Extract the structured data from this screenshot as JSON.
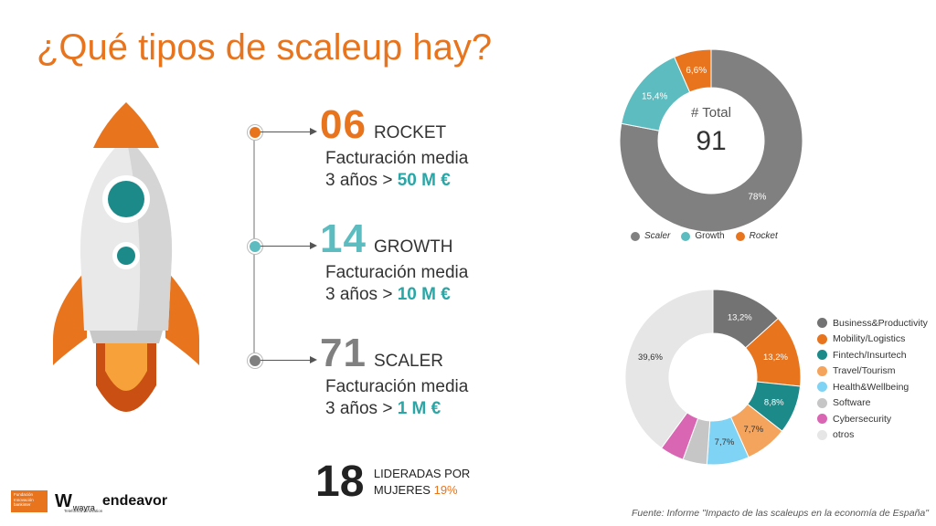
{
  "title": "¿Qué tipos de scaleup hay?",
  "types": [
    {
      "num": "06",
      "name": "ROCKET",
      "label": "Facturación media",
      "prefix": "3 años >",
      "value": "50 M €",
      "color": "#e8741e"
    },
    {
      "num": "14",
      "name": "GROWTH",
      "label": "Facturación media",
      "prefix": "3 años >",
      "value": "10 M €",
      "color": "#5cbcbf"
    },
    {
      "num": "71",
      "name": "SCALER",
      "label": "Facturación media",
      "prefix": "3 años >",
      "value": "1 M €",
      "color": "#808080"
    }
  ],
  "women": {
    "num": "18",
    "line1": "LIDERADAS POR",
    "line2": "MUJERES",
    "pct": "19%"
  },
  "source": "Fuente: Informe \"Impacto de las scaleups en la economía de España\"",
  "logos": {
    "fundacion": "Fundación Innovación bankinter",
    "wayra": "wayra",
    "wayra_sub": "Telefónica Innovation",
    "endeavor": "endeavor"
  },
  "chart_data": [
    {
      "type": "pie",
      "center_label": "# Total",
      "center_value": "91",
      "series": [
        {
          "name": "Scaler",
          "value": 78,
          "label": "78%",
          "color": "#808080"
        },
        {
          "name": "Growth",
          "value": 15.4,
          "label": "15,4%",
          "color": "#5cbcbf"
        },
        {
          "name": "Rocket",
          "value": 6.6,
          "label": "6,6%",
          "color": "#e8741e"
        }
      ],
      "legend_position": "bottom"
    },
    {
      "type": "pie",
      "series": [
        {
          "name": "Business&Productivity",
          "value": 13.2,
          "label": "13,2%",
          "color": "#737373"
        },
        {
          "name": "Mobility/Logistics",
          "value": 13.2,
          "label": "13,2%",
          "color": "#e8741e"
        },
        {
          "name": "Fintech/Insurtech",
          "value": 8.8,
          "label": "8,8%",
          "color": "#1d8a8a"
        },
        {
          "name": "Travel/Tourism",
          "value": 7.7,
          "label": "7,7%",
          "color": "#f5a45d"
        },
        {
          "name": "Health&Wellbeing",
          "value": 7.7,
          "label": "7,7%",
          "color": "#7fd3f5"
        },
        {
          "name": "Software",
          "value": 4.4,
          "label": "",
          "color": "#c6c6c6"
        },
        {
          "name": "Cybersecurity",
          "value": 4.4,
          "label": "",
          "color": "#d966b3"
        },
        {
          "name": "otros",
          "value": 39.6,
          "label": "39,6%",
          "color": "#e6e6e6"
        }
      ],
      "legend_position": "right"
    }
  ]
}
